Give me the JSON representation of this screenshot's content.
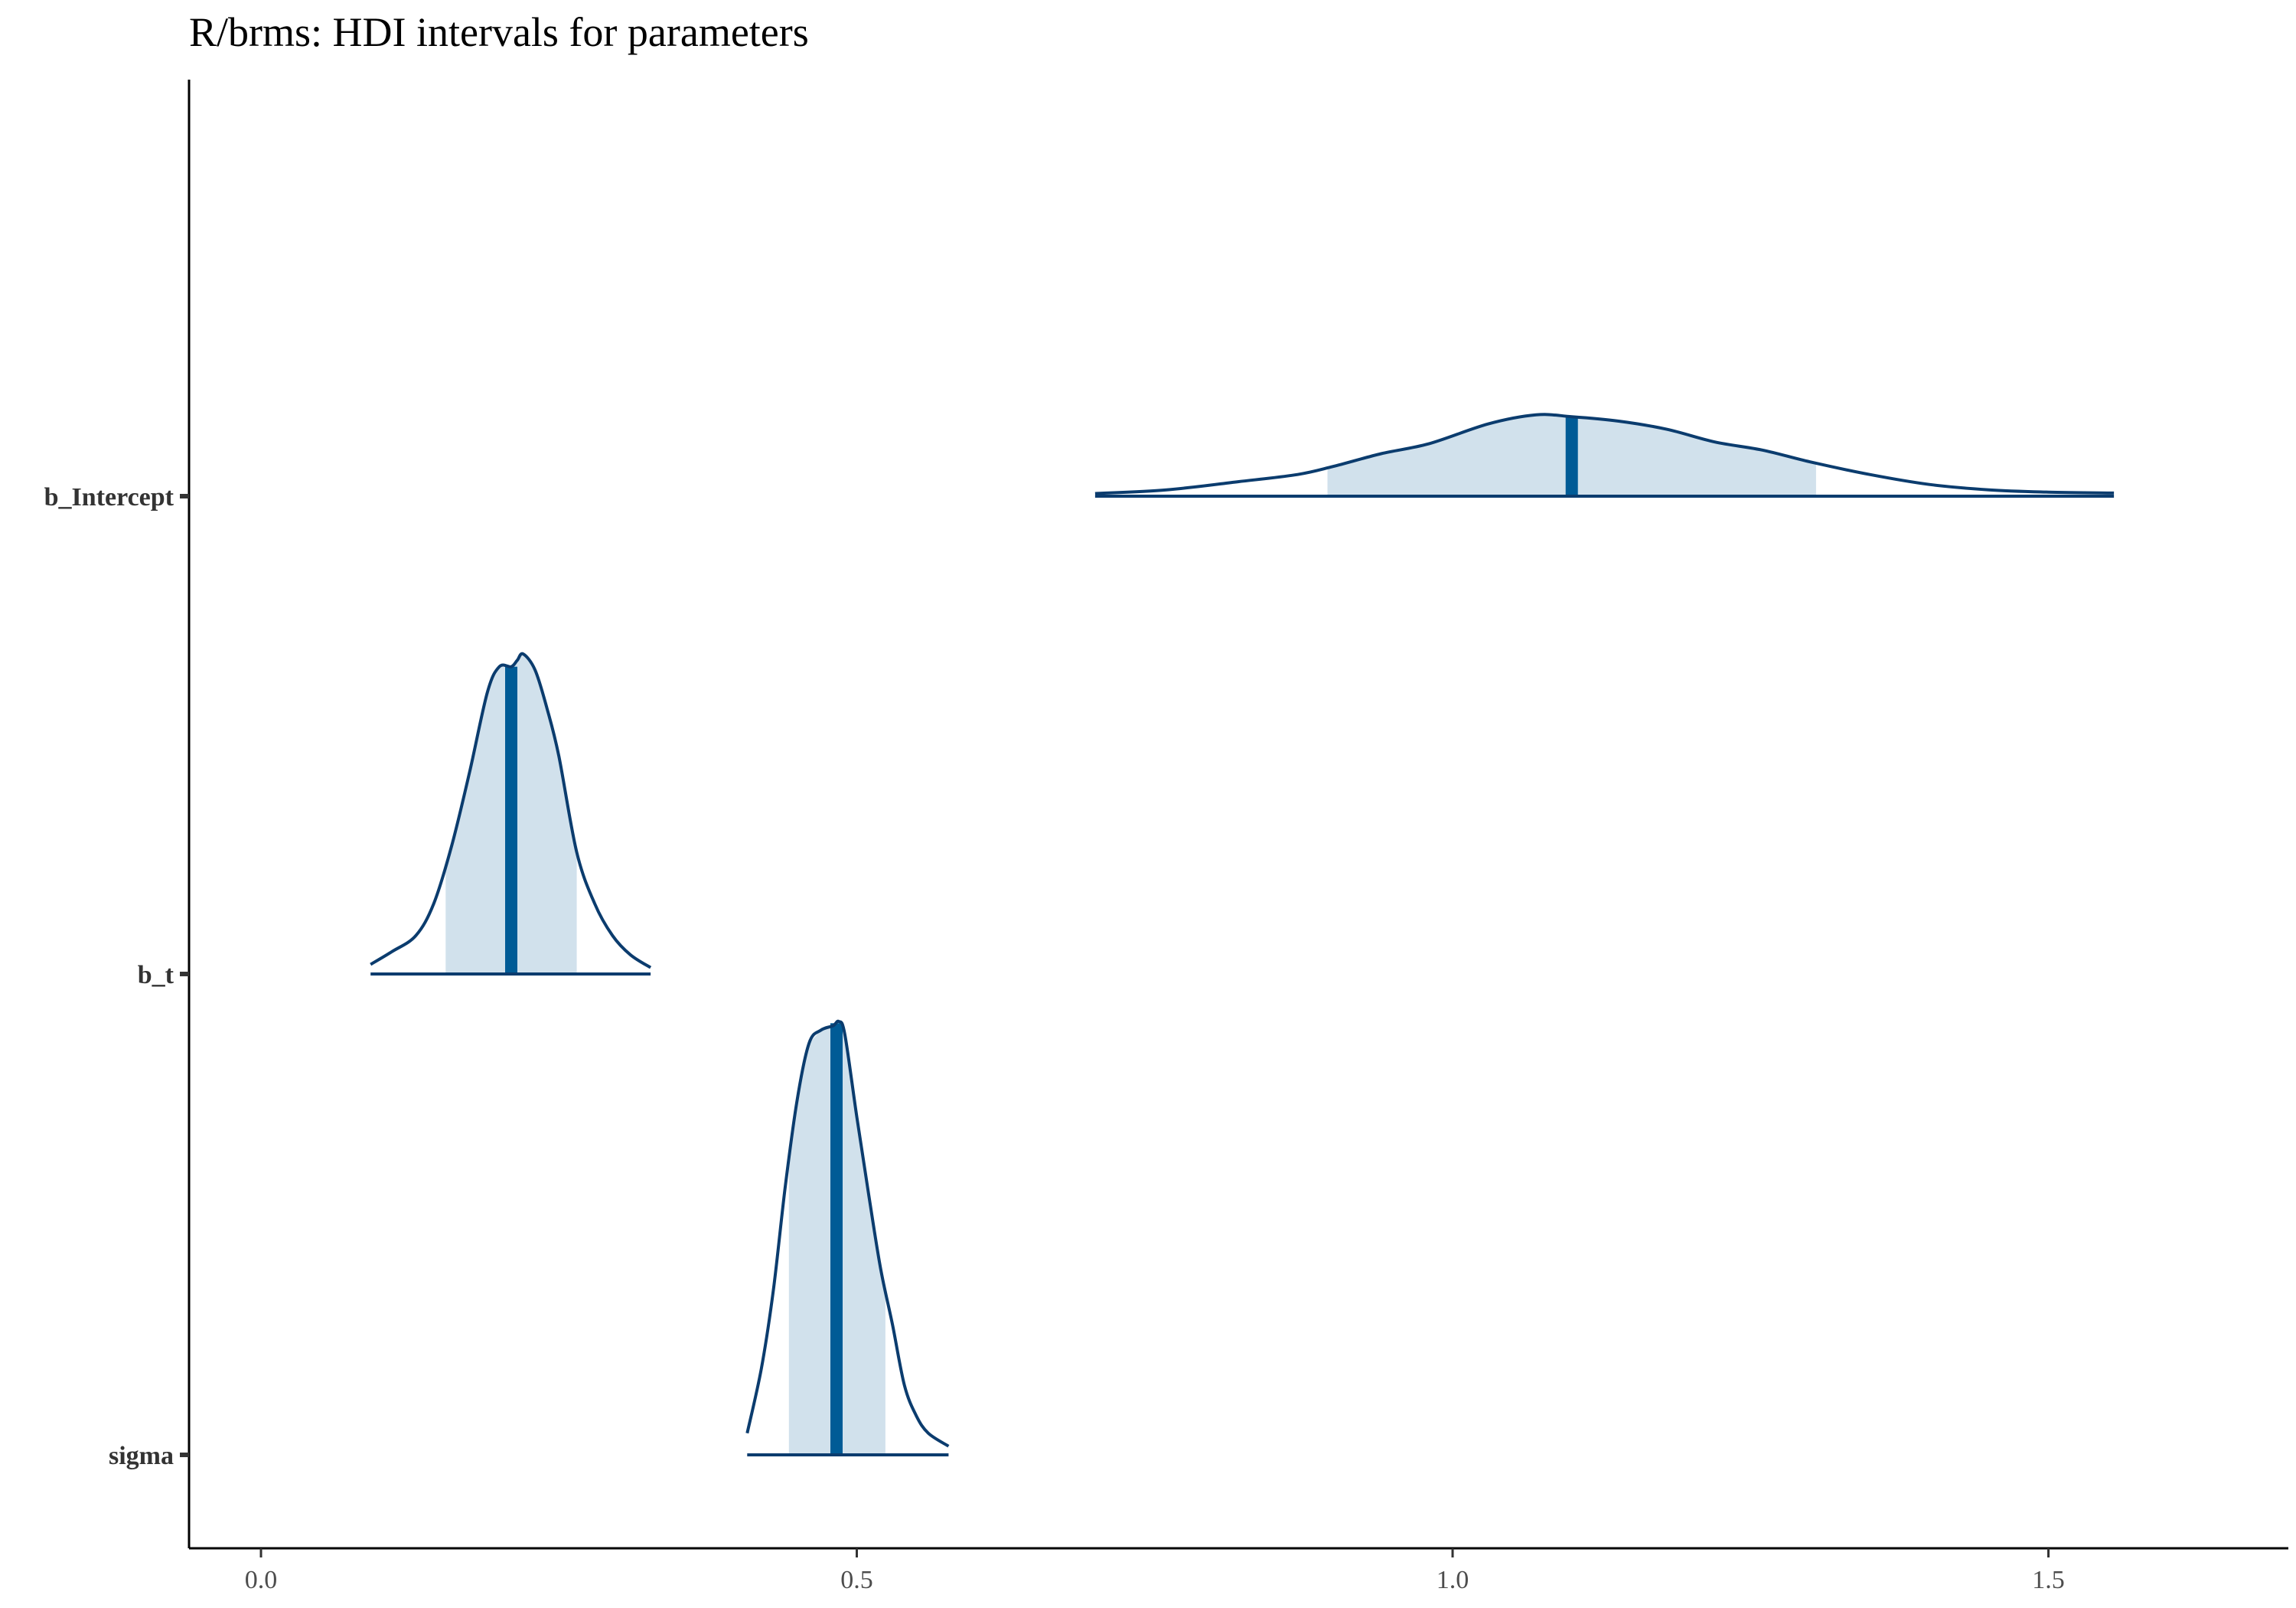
{
  "chart_data": {
    "type": "density",
    "title": "R/brms: HDI intervals for parameters",
    "xlabel": "",
    "ylabel": "",
    "xlim": [
      -0.12,
      1.71
    ],
    "x_ticks": [
      0.0,
      0.5,
      1.0,
      1.5
    ],
    "x_tick_labels": [
      "0.0",
      "0.5",
      "1.0",
      "1.5"
    ],
    "grid": false,
    "legend": "none",
    "colors": {
      "outline": "#0b3c6e",
      "fill": "#d1e1ec",
      "median": "#005b96"
    },
    "parameters": [
      {
        "name": "b_Intercept",
        "median": 1.1,
        "hdi": [
          0.895,
          1.305
        ],
        "range": [
          0.7,
          1.555
        ],
        "density": [
          [
            0.7,
            0.03
          ],
          [
            0.76,
            0.07
          ],
          [
            0.82,
            0.16
          ],
          [
            0.87,
            0.24
          ],
          [
            0.9,
            0.33
          ],
          [
            0.94,
            0.47
          ],
          [
            0.98,
            0.58
          ],
          [
            1.03,
            0.8
          ],
          [
            1.07,
            0.9
          ],
          [
            1.1,
            0.88
          ],
          [
            1.14,
            0.83
          ],
          [
            1.18,
            0.74
          ],
          [
            1.22,
            0.6
          ],
          [
            1.26,
            0.51
          ],
          [
            1.3,
            0.38
          ],
          [
            1.35,
            0.24
          ],
          [
            1.4,
            0.13
          ],
          [
            1.45,
            0.07
          ],
          [
            1.5,
            0.045
          ],
          [
            1.555,
            0.035
          ]
        ]
      },
      {
        "name": "b_t",
        "median": 0.21,
        "hdi": [
          0.155,
          0.265
        ],
        "range": [
          0.092,
          0.327
        ],
        "density": [
          [
            0.092,
            0.03
          ],
          [
            0.11,
            0.07
          ],
          [
            0.13,
            0.12
          ],
          [
            0.145,
            0.22
          ],
          [
            0.16,
            0.4
          ],
          [
            0.175,
            0.63
          ],
          [
            0.19,
            0.88
          ],
          [
            0.2,
            0.96
          ],
          [
            0.21,
            0.96
          ],
          [
            0.215,
            0.98
          ],
          [
            0.22,
            1.0
          ],
          [
            0.23,
            0.95
          ],
          [
            0.24,
            0.83
          ],
          [
            0.25,
            0.68
          ],
          [
            0.265,
            0.38
          ],
          [
            0.28,
            0.22
          ],
          [
            0.295,
            0.12
          ],
          [
            0.31,
            0.06
          ],
          [
            0.327,
            0.02
          ]
        ]
      },
      {
        "name": "sigma",
        "median": 0.483,
        "hdi": [
          0.443,
          0.524
        ],
        "range": [
          0.408,
          0.577
        ],
        "density": [
          [
            0.408,
            0.05
          ],
          [
            0.42,
            0.2
          ],
          [
            0.43,
            0.38
          ],
          [
            0.44,
            0.62
          ],
          [
            0.45,
            0.82
          ],
          [
            0.46,
            0.95
          ],
          [
            0.47,
            0.98
          ],
          [
            0.48,
            0.99
          ],
          [
            0.485,
            1.0
          ],
          [
            0.49,
            0.97
          ],
          [
            0.5,
            0.78
          ],
          [
            0.51,
            0.6
          ],
          [
            0.52,
            0.43
          ],
          [
            0.53,
            0.3
          ],
          [
            0.54,
            0.16
          ],
          [
            0.55,
            0.09
          ],
          [
            0.56,
            0.05
          ],
          [
            0.577,
            0.02
          ]
        ]
      }
    ]
  }
}
